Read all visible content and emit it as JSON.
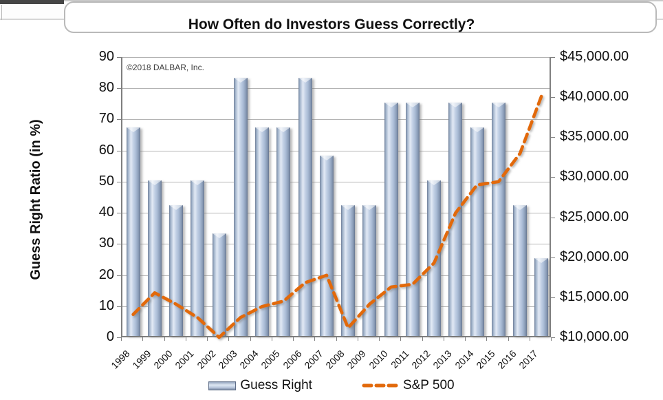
{
  "browser_chrome": {
    "note": "clipped bottom edge of a browser toolbar with rounded address bar"
  },
  "chart": {
    "title": "How Often do Investors Guess Correctly?",
    "copyright": "©2018 DALBAR, Inc.",
    "left_axis_title": "Guess Right Ratio (in %)",
    "legend": [
      {
        "label": "Guess Right",
        "swatch": "bar"
      },
      {
        "label": "S&P 500",
        "swatch": "dashed-line"
      }
    ]
  },
  "chart_data": {
    "type": "bar",
    "subtype": "bar+line dual-axis",
    "title": "How Often do Investors Guess Correctly?",
    "categories": [
      "1998",
      "1999",
      "2000",
      "2001",
      "2002",
      "2003",
      "2004",
      "2005",
      "2006",
      "2007",
      "2008",
      "2009",
      "2010",
      "2011",
      "2012",
      "2013",
      "2014",
      "2015",
      "2016",
      "2017"
    ],
    "series": [
      {
        "name": "Guess Right",
        "type": "bar",
        "axis": "left",
        "values": [
          67,
          50,
          42,
          50,
          33,
          83,
          67,
          67,
          83,
          58,
          42,
          42,
          75,
          75,
          50,
          75,
          67,
          75,
          42,
          25
        ]
      },
      {
        "name": "S&P 500",
        "type": "line",
        "axis": "right",
        "style": "dashed",
        "values": [
          12860,
          15560,
          14140,
          12460,
          10000,
          12490,
          13850,
          14530,
          16830,
          17760,
          11190,
          14150,
          16290,
          16630,
          19290,
          25540,
          29040,
          29440,
          32980,
          40170
        ]
      }
    ],
    "left_axis": {
      "label": "Guess Right Ratio (in %)",
      "min": 0,
      "max": 90,
      "step": 10,
      "tick_labels": [
        "0",
        "10",
        "20",
        "30",
        "40",
        "50",
        "60",
        "70",
        "80",
        "90"
      ]
    },
    "right_axis": {
      "min": 10000,
      "max": 45000,
      "step": 5000,
      "tick_labels": [
        "$10,000.00",
        "$15,000.00",
        "$20,000.00",
        "$25,000.00",
        "$30,000.00",
        "$35,000.00",
        "$40,000.00",
        "$45,000.00"
      ]
    },
    "grid": "horizontal, every 10 units of left axis",
    "legend_position": "bottom-center",
    "colors": {
      "bar_fill": "#b9c9e1",
      "bar_edge": "#6e7d97",
      "line": "#e2690b",
      "gridline": "#b3b3b3",
      "axis": "#7f7f7f"
    }
  }
}
